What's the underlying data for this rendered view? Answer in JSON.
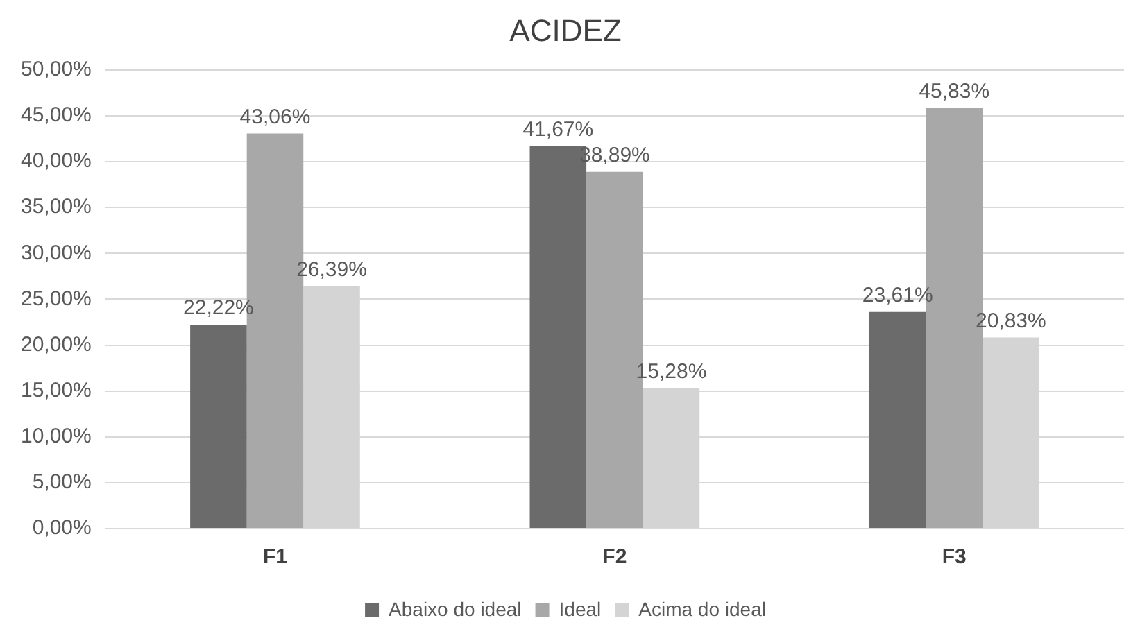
{
  "chart_data": {
    "type": "bar",
    "title": "ACIDEZ",
    "categories": [
      "F1",
      "F2",
      "F3"
    ],
    "series": [
      {
        "name": "Abaixo do ideal",
        "color": "#6b6b6b",
        "values": [
          22.22,
          41.67,
          23.61
        ],
        "value_labels": [
          "22,22%",
          "41,67%",
          "23,61%"
        ]
      },
      {
        "name": "Ideal",
        "color": "#a8a8a8",
        "values": [
          43.06,
          38.89,
          45.83
        ],
        "value_labels": [
          "43,06%",
          "38,89%",
          "45,83%"
        ]
      },
      {
        "name": "Acima do ideal",
        "color": "#d4d4d4",
        "values": [
          26.39,
          15.28,
          20.83
        ],
        "value_labels": [
          "26,39%",
          "15,28%",
          "20,83%"
        ]
      }
    ],
    "ylim": [
      0,
      50
    ],
    "yticks": [
      {
        "value": 0,
        "label": "0,00%"
      },
      {
        "value": 5,
        "label": "5,00%"
      },
      {
        "value": 10,
        "label": "10,00%"
      },
      {
        "value": 15,
        "label": "15,00%"
      },
      {
        "value": 20,
        "label": "20,00%"
      },
      {
        "value": 25,
        "label": "25,00%"
      },
      {
        "value": 30,
        "label": "30,00%"
      },
      {
        "value": 35,
        "label": "35,00%"
      },
      {
        "value": 40,
        "label": "40,00%"
      },
      {
        "value": 45,
        "label": "45,00%"
      },
      {
        "value": 50,
        "label": "50,00%"
      }
    ],
    "grid": "y",
    "legend": "bottom"
  }
}
